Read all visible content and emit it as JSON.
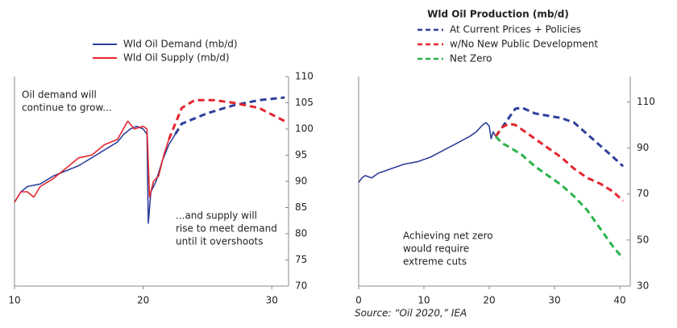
{
  "chart_data": [
    {
      "type": "line",
      "xlim": [
        10,
        31.3
      ],
      "xticks": [
        10,
        20,
        30
      ],
      "ylim": [
        70,
        110
      ],
      "yticks": [
        70,
        75,
        80,
        85,
        90,
        95,
        100,
        105,
        110
      ],
      "legend": "top",
      "series": [
        {
          "name": "Wld Oil Demand (mb/d)",
          "color": "#2e3f9a",
          "dashed": false,
          "x": [
            10,
            10.5,
            11,
            12,
            13,
            14,
            15,
            16,
            17,
            18,
            18.5,
            19,
            19.5,
            20,
            20.3,
            20.4,
            20.6,
            21,
            21.5,
            22,
            22.5
          ],
          "values": [
            86,
            88,
            89,
            89.5,
            91,
            92,
            93,
            94.5,
            96,
            97.5,
            99,
            100,
            100.5,
            100,
            99,
            82,
            88,
            90,
            94,
            97,
            99
          ]
        },
        {
          "name": "Wld Oil Supply (mb/d)",
          "color": "#e3262e",
          "dashed": false,
          "x": [
            10,
            10.5,
            11,
            11.5,
            12,
            13,
            14,
            15,
            16,
            17,
            18,
            18.8,
            19.3,
            20,
            20.3,
            20.5,
            20.8,
            21.2,
            21.6,
            22
          ],
          "values": [
            86,
            88,
            88,
            87,
            89,
            90.5,
            92.5,
            94.5,
            95,
            97,
            98,
            101.5,
            100,
            100.5,
            100,
            87,
            90,
            91,
            95,
            98
          ]
        },
        {
          "color": "#2e3f9a",
          "dashed": true,
          "x": [
            22.5,
            23,
            25,
            27,
            29,
            31
          ],
          "values": [
            99,
            101,
            103,
            104.5,
            105.5,
            106
          ]
        },
        {
          "color": "#e3262e",
          "dashed": true,
          "x": [
            22,
            22.5,
            23,
            24,
            25.5,
            27,
            29,
            31
          ],
          "values": [
            98,
            101,
            104,
            105.5,
            105.5,
            105,
            104,
            101.5
          ]
        }
      ],
      "annotations": [
        {
          "lines": [
            "Oil demand will",
            "continue to grow..."
          ]
        },
        {
          "lines": [
            "...and supply will",
            "rise to meet demand",
            "until it overshoots"
          ]
        }
      ]
    },
    {
      "type": "line",
      "title": "Wld Oil Production (mb/d)",
      "xlim": [
        0,
        41.6
      ],
      "xticks": [
        0,
        10,
        20,
        30,
        40
      ],
      "ylim": [
        30,
        121
      ],
      "yticks": [
        30,
        50,
        70,
        90,
        110
      ],
      "legend": "top",
      "series": [
        {
          "color": "#2e3f9a",
          "dashed": false,
          "x": [
            0,
            0.5,
            1,
            2,
            3,
            5,
            7,
            9,
            11,
            13,
            15,
            17,
            18,
            19,
            19.5,
            20,
            20.3,
            20.6,
            21
          ],
          "values": [
            75,
            77,
            78,
            77,
            79,
            81,
            83,
            84,
            86,
            89,
            92,
            95,
            97,
            100,
            101,
            99.5,
            94,
            97,
            95
          ]
        },
        {
          "name": "At Current Prices + Policies",
          "color": "#2e3f9a",
          "dashed": true,
          "x": [
            21,
            22,
            23,
            24,
            25,
            27,
            29,
            31,
            33,
            35,
            37,
            39,
            40.5
          ],
          "values": [
            95,
            99,
            103,
            107,
            107.5,
            105,
            104,
            103,
            101,
            96,
            91,
            86,
            82
          ]
        },
        {
          "name": "w/No New Public Development",
          "color": "#e3262e",
          "dashed": true,
          "x": [
            21,
            22,
            23,
            24,
            25,
            27,
            29,
            31,
            33,
            35,
            37,
            39,
            40.5
          ],
          "values": [
            95,
            99,
            100.5,
            100,
            98,
            94,
            90,
            86,
            81,
            77,
            74.5,
            71,
            67
          ]
        },
        {
          "name": "Net Zero",
          "color": "#2bb34a",
          "dashed": true,
          "x": [
            21,
            22,
            23,
            25,
            27,
            29,
            31,
            33,
            35,
            37,
            39,
            40.5
          ],
          "values": [
            95,
            92,
            90.5,
            87,
            82,
            78,
            74,
            69,
            63,
            55,
            47,
            42
          ]
        }
      ],
      "annotations": [
        {
          "lines": [
            "Achieving net zero",
            "would require",
            "extreme cuts"
          ]
        }
      ],
      "source": "Source: “Oil 2020,” IEA"
    }
  ]
}
